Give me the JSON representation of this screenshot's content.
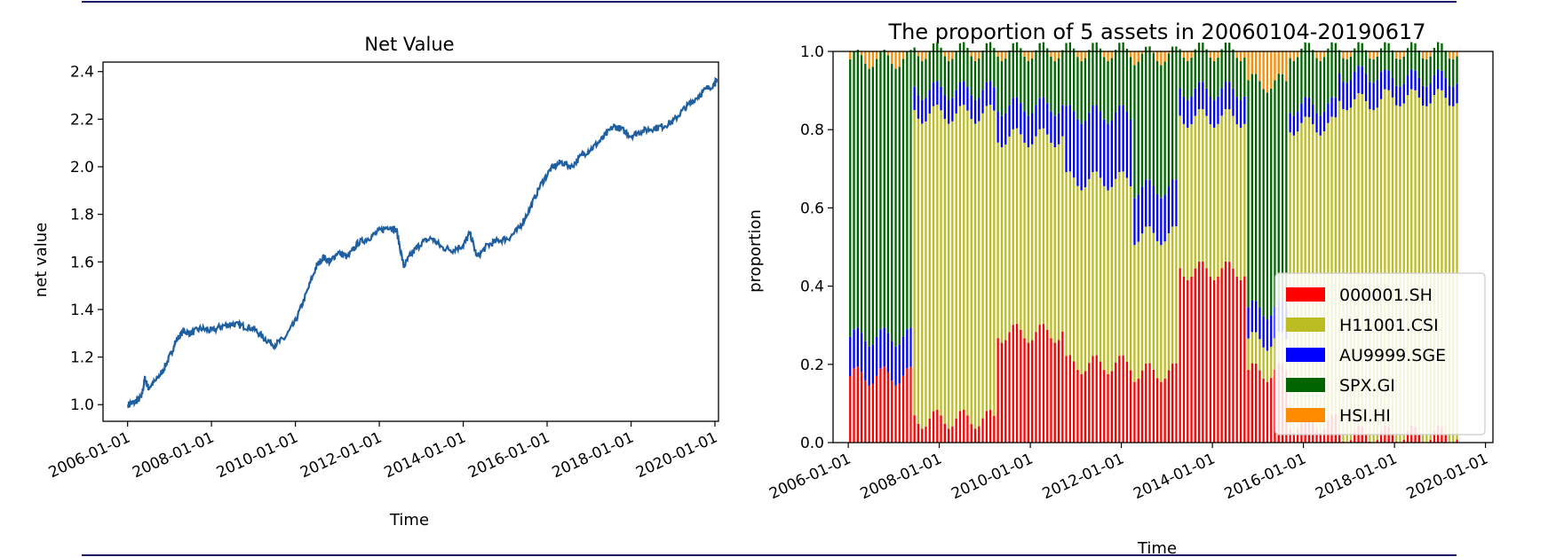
{
  "chart_data": [
    {
      "type": "line",
      "title": "Net Value",
      "xlabel": "Time",
      "ylabel": "net value",
      "x_ticks": [
        "2006-01-01",
        "2008-01-01",
        "2010-01-01",
        "2012-01-01",
        "2014-01-01",
        "2016-01-01",
        "2018-01-01",
        "2020-01-01"
      ],
      "y_ticks": [
        "1.0",
        "1.2",
        "1.4",
        "1.6",
        "1.8",
        "2.0",
        "2.2",
        "2.4"
      ],
      "xlim": [
        "2005-06-01",
        "2020-02-01"
      ],
      "ylim": [
        0.93,
        2.44
      ],
      "grid": false,
      "color": "#1f5fa0",
      "points": [
        [
          "2006-01-04",
          1.0
        ],
        [
          "2006-03-01",
          1.01
        ],
        [
          "2006-05-01",
          1.03
        ],
        [
          "2006-06-01",
          1.11
        ],
        [
          "2006-07-01",
          1.07
        ],
        [
          "2006-09-01",
          1.1
        ],
        [
          "2006-11-01",
          1.14
        ],
        [
          "2007-01-01",
          1.2
        ],
        [
          "2007-03-01",
          1.27
        ],
        [
          "2007-05-01",
          1.31
        ],
        [
          "2007-07-01",
          1.3
        ],
        [
          "2007-10-01",
          1.32
        ],
        [
          "2008-01-01",
          1.31
        ],
        [
          "2008-04-01",
          1.33
        ],
        [
          "2008-07-01",
          1.34
        ],
        [
          "2008-10-01",
          1.33
        ],
        [
          "2009-01-01",
          1.32
        ],
        [
          "2009-04-01",
          1.28
        ],
        [
          "2009-07-01",
          1.25
        ],
        [
          "2009-10-01",
          1.28
        ],
        [
          "2010-01-01",
          1.35
        ],
        [
          "2010-04-01",
          1.46
        ],
        [
          "2010-07-01",
          1.58
        ],
        [
          "2010-09-01",
          1.62
        ],
        [
          "2010-11-01",
          1.6
        ],
        [
          "2011-01-01",
          1.64
        ],
        [
          "2011-04-01",
          1.62
        ],
        [
          "2011-07-01",
          1.68
        ],
        [
          "2011-10-01",
          1.7
        ],
        [
          "2012-01-01",
          1.73
        ],
        [
          "2012-04-01",
          1.75
        ],
        [
          "2012-06-01",
          1.73
        ],
        [
          "2012-08-01",
          1.58
        ],
        [
          "2012-10-01",
          1.63
        ],
        [
          "2013-01-01",
          1.68
        ],
        [
          "2013-04-01",
          1.7
        ],
        [
          "2013-07-01",
          1.66
        ],
        [
          "2013-10-01",
          1.65
        ],
        [
          "2014-01-01",
          1.67
        ],
        [
          "2014-03-01",
          1.72
        ],
        [
          "2014-05-01",
          1.62
        ],
        [
          "2014-08-01",
          1.67
        ],
        [
          "2014-11-01",
          1.69
        ],
        [
          "2015-02-01",
          1.7
        ],
        [
          "2015-05-01",
          1.74
        ],
        [
          "2015-08-01",
          1.82
        ],
        [
          "2015-11-01",
          1.92
        ],
        [
          "2016-02-01",
          1.99
        ],
        [
          "2016-05-01",
          2.02
        ],
        [
          "2016-08-01",
          2.0
        ],
        [
          "2016-11-01",
          2.05
        ],
        [
          "2017-02-01",
          2.08
        ],
        [
          "2017-05-01",
          2.12
        ],
        [
          "2017-08-01",
          2.17
        ],
        [
          "2017-10-01",
          2.16
        ],
        [
          "2018-01-01",
          2.13
        ],
        [
          "2018-04-01",
          2.15
        ],
        [
          "2018-07-01",
          2.16
        ],
        [
          "2018-10-01",
          2.17
        ],
        [
          "2019-01-01",
          2.19
        ],
        [
          "2019-04-01",
          2.24
        ],
        [
          "2019-07-01",
          2.28
        ],
        [
          "2019-10-01",
          2.32
        ],
        [
          "2020-01-01",
          2.35
        ],
        [
          "2020-01-18",
          2.37
        ]
      ]
    },
    {
      "type": "bar",
      "stacked": true,
      "title": "The proportion of 5 assets in 20060104-20190617",
      "xlabel": "Time",
      "ylabel": "proportion",
      "x_ticks": [
        "2006-01-01",
        "2008-01-01",
        "2010-01-01",
        "2012-01-01",
        "2014-01-01",
        "2016-01-01",
        "2018-01-01",
        "2020-01-01"
      ],
      "y_ticks": [
        "0.0",
        "0.2",
        "0.4",
        "0.6",
        "0.8",
        "1.0"
      ],
      "xlim": [
        "2005-09-01",
        "2020-03-01"
      ],
      "ylim": [
        0,
        1
      ],
      "grid": false,
      "legend_position": "lower-right",
      "series": [
        {
          "name": "000001.SH",
          "color": "#ff0000"
        },
        {
          "name": "H11001.CSI",
          "color": "#bcbd22"
        },
        {
          "name": "AU9999.SGE",
          "color": "#0000ff"
        },
        {
          "name": "SPX.GI",
          "color": "#006400"
        },
        {
          "name": "HSI.HI",
          "color": "#ff8c00"
        }
      ],
      "segments": [
        {
          "start": "2006-01-01",
          "end": "2007-06-01",
          "sh": 0.17,
          "csi": 0.0,
          "au": 0.1,
          "spx": 0.71
        },
        {
          "start": "2007-06-01",
          "end": "2009-04-01",
          "sh": 0.06,
          "csi": 0.78,
          "au": 0.06,
          "spx": 0.1
        },
        {
          "start": "2009-04-01",
          "end": "2010-10-01",
          "sh": 0.28,
          "csi": 0.5,
          "au": 0.08,
          "spx": 0.14
        },
        {
          "start": "2010-10-01",
          "end": "2012-04-01",
          "sh": 0.2,
          "csi": 0.47,
          "au": 0.17,
          "spx": 0.16
        },
        {
          "start": "2012-04-01",
          "end": "2013-04-01",
          "sh": 0.18,
          "csi": 0.35,
          "au": 0.12,
          "spx": 0.34
        },
        {
          "start": "2013-04-01",
          "end": "2014-10-01",
          "sh": 0.44,
          "csi": 0.39,
          "au": 0.07,
          "spx": 0.1
        },
        {
          "start": "2014-10-01",
          "end": "2015-09-01",
          "sh": 0.18,
          "csi": 0.08,
          "au": 0.08,
          "spx": 0.58
        },
        {
          "start": "2015-09-01",
          "end": "2016-10-01",
          "sh": 0.05,
          "csi": 0.76,
          "au": 0.05,
          "spx": 0.14
        },
        {
          "start": "2016-10-01",
          "end": "2017-10-01",
          "sh": 0.02,
          "csi": 0.85,
          "au": 0.07,
          "spx": 0.06
        },
        {
          "start": "2017-10-01",
          "end": "2019-06-17",
          "sh": 0.02,
          "csi": 0.86,
          "au": 0.05,
          "spx": 0.07
        }
      ]
    }
  ]
}
